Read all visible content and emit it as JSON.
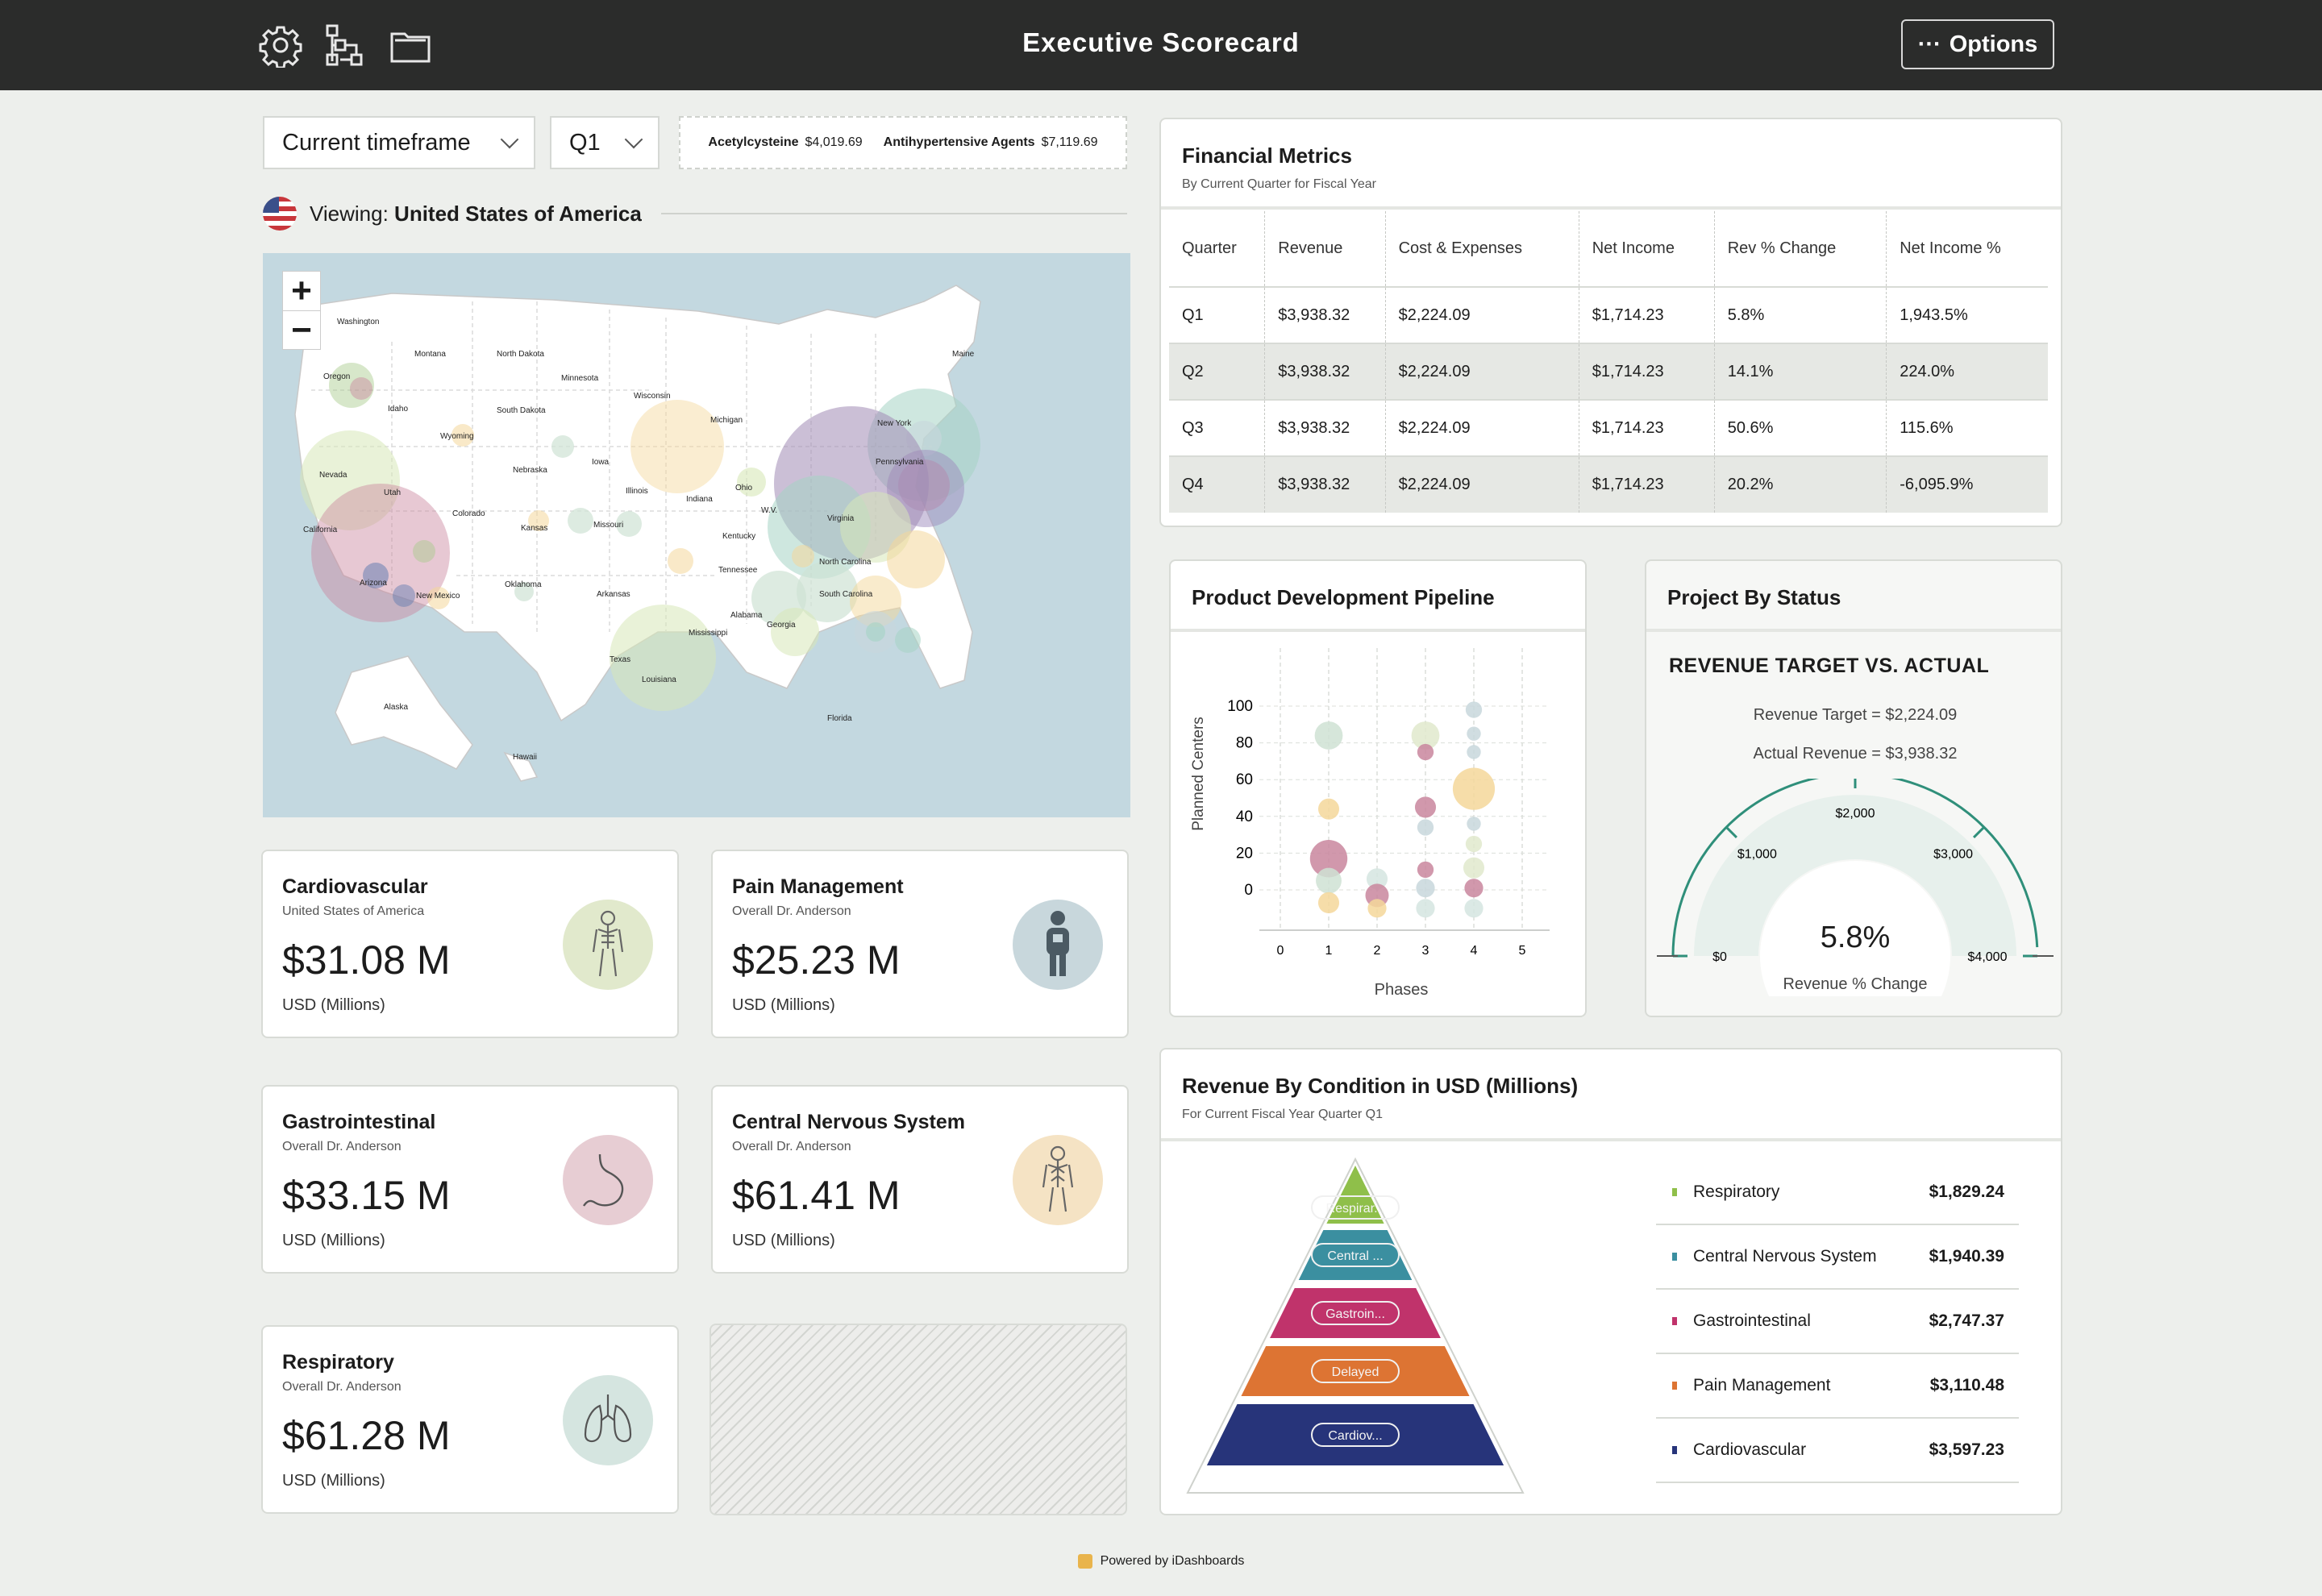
{
  "header": {
    "title": "Executive Scorecard",
    "options_label": "Options",
    "icons": [
      "gear-icon",
      "hierarchy-icon",
      "folder-icon"
    ]
  },
  "filters": {
    "timeframe": "Current timeframe",
    "quarter": "Q1",
    "ticker": [
      {
        "name": "Acetylcysteine",
        "value": "$4,019.69"
      },
      {
        "name": "Antihypertensive Agents",
        "value": "$7,119.69"
      }
    ]
  },
  "viewing": {
    "prefix": "Viewing:",
    "country": "United States of America"
  },
  "map": {
    "states": [
      "Washington",
      "Montana",
      "North Dakota",
      "Minnesota",
      "Wisconsin",
      "Michigan",
      "Maine",
      "Oregon",
      "Idaho",
      "Wyoming",
      "South Dakota",
      "Iowa",
      "Illinois",
      "New York",
      "Pennsylvania",
      "Nevada",
      "Utah",
      "Colorado",
      "Nebraska",
      "Kansas",
      "Missouri",
      "Indiana",
      "Ohio",
      "W.V.",
      "Virginia",
      "California",
      "Arizona",
      "New Mexico",
      "Oklahoma",
      "Arkansas",
      "Tennessee",
      "Kentucky",
      "North Carolina",
      "South Carolina",
      "Alabama",
      "Georgia",
      "Mississippi",
      "Texas",
      "Louisiana",
      "Florida",
      "Alaska",
      "Hawaii"
    ],
    "zoom_in": "+",
    "zoom_out": "−"
  },
  "kpis": [
    {
      "name": "Cardiovascular",
      "sub": "United States of America",
      "value": "$31.08 M",
      "unit": "USD (Millions)",
      "icon": "body-icon",
      "color": "#e1e9cc"
    },
    {
      "name": "Pain Management",
      "sub": "Overall Dr. Anderson",
      "value": "$25.23 M",
      "unit": "USD (Millions)",
      "icon": "patient-icon",
      "color": "#c8d7dc"
    },
    {
      "name": "Gastrointestinal",
      "sub": "Overall Dr. Anderson",
      "value": "$33.15 M",
      "unit": "USD (Millions)",
      "icon": "stomach-icon",
      "color": "#e7cdd3"
    },
    {
      "name": "Central Nervous System",
      "sub": "Overall Dr. Anderson",
      "value": "$61.41 M",
      "unit": "USD (Millions)",
      "icon": "nervous-system-icon",
      "color": "#f5e3c4"
    },
    {
      "name": "Respiratory",
      "sub": "Overall Dr. Anderson",
      "value": "$61.28 M",
      "unit": "USD (Millions)",
      "icon": "lungs-icon",
      "color": "#d5e5e0"
    }
  ],
  "financial": {
    "title": "Financial Metrics",
    "subtitle": "By Current Quarter for Fiscal Year",
    "columns": [
      "Quarter",
      "Revenue",
      "Cost & Expenses",
      "Net Income",
      "Rev % Change",
      "Net Income %"
    ],
    "rows": [
      [
        "Q1",
        "$3,938.32",
        "$2,224.09",
        "$1,714.23",
        "5.8%",
        "1,943.5%"
      ],
      [
        "Q2",
        "$3,938.32",
        "$2,224.09",
        "$1,714.23",
        "14.1%",
        "224.0%"
      ],
      [
        "Q3",
        "$3,938.32",
        "$2,224.09",
        "$1,714.23",
        "50.6%",
        "115.6%"
      ],
      [
        "Q4",
        "$3,938.32",
        "$2,224.09",
        "$1,714.23",
        "20.2%",
        "-6,095.9%"
      ]
    ]
  },
  "pipeline": {
    "title": "Product Development Pipeline",
    "chart_data": {
      "type": "scatter",
      "xlabel": "Phases",
      "ylabel": "Planned Centers",
      "xlim": [
        0,
        5
      ],
      "ylim": [
        0,
        100
      ],
      "x_ticks": [
        "0",
        "1",
        "2",
        "3",
        "4",
        "5"
      ],
      "y_ticks": [
        "0",
        "20",
        "40",
        "60",
        "80",
        "100"
      ],
      "points": [
        {
          "x": 1,
          "y": 84,
          "r": 12,
          "color": "#cfe2d4"
        },
        {
          "x": 1,
          "y": 44,
          "r": 9,
          "color": "#f4d79a"
        },
        {
          "x": 1,
          "y": 17,
          "r": 16,
          "color": "#c9869e"
        },
        {
          "x": 1,
          "y": 5,
          "r": 11,
          "color": "#cfe2d4"
        },
        {
          "x": 1,
          "y": -7,
          "r": 9,
          "color": "#f4d79a"
        },
        {
          "x": 2,
          "y": 6,
          "r": 9,
          "color": "#d5e5e0"
        },
        {
          "x": 2,
          "y": -3,
          "r": 10,
          "color": "#c9869e"
        },
        {
          "x": 2,
          "y": -10,
          "r": 8,
          "color": "#f4d79a"
        },
        {
          "x": 3,
          "y": 84,
          "r": 12,
          "color": "#e1e9cc"
        },
        {
          "x": 3,
          "y": 75,
          "r": 7,
          "color": "#c9869e"
        },
        {
          "x": 3,
          "y": 45,
          "r": 9,
          "color": "#c9869e"
        },
        {
          "x": 3,
          "y": 34,
          "r": 7,
          "color": "#c8d7dc"
        },
        {
          "x": 3,
          "y": 11,
          "r": 7,
          "color": "#c9869e"
        },
        {
          "x": 3,
          "y": 1,
          "r": 8,
          "color": "#c8d7dc"
        },
        {
          "x": 3,
          "y": -10,
          "r": 8,
          "color": "#d5e5e0"
        },
        {
          "x": 4,
          "y": 98,
          "r": 7,
          "color": "#c8d7dc"
        },
        {
          "x": 4,
          "y": 85,
          "r": 6,
          "color": "#c8d7dc"
        },
        {
          "x": 4,
          "y": 75,
          "r": 6,
          "color": "#c8d7dc"
        },
        {
          "x": 4,
          "y": 55,
          "r": 18,
          "color": "#f4d79a"
        },
        {
          "x": 4,
          "y": 36,
          "r": 6,
          "color": "#c8d7dc"
        },
        {
          "x": 4,
          "y": 25,
          "r": 7,
          "color": "#e1e9cc"
        },
        {
          "x": 4,
          "y": 12,
          "r": 9,
          "color": "#e1e9cc"
        },
        {
          "x": 4,
          "y": 1,
          "r": 8,
          "color": "#c9869e"
        },
        {
          "x": 4,
          "y": -10,
          "r": 8,
          "color": "#d5e5e0"
        }
      ]
    }
  },
  "status": {
    "title": "Project By Status",
    "heading": "REVENUE TARGET VS. ACTUAL",
    "target_label": "Revenue Target = $2,224.09",
    "actual_label": "Actual Revenue = $3,938.32",
    "gauge_value": "5.8%",
    "gauge_caption": "Revenue % Change",
    "gauge_ticks": [
      "$0",
      "$1,000",
      "$2,000",
      "$3,000",
      "$4,000"
    ],
    "gauge_min": 0,
    "gauge_max": 4000,
    "gauge_actual": 3938.32,
    "accent": "#2f8f7a"
  },
  "revenue": {
    "title": "Revenue By Condition in USD (Millions)",
    "subtitle": "For Current Fiscal Year Quarter Q1",
    "pyramid": [
      {
        "label": "Respirar...",
        "color": "#8fbf4a"
      },
      {
        "label": "Central ...",
        "color": "#3b8fa0"
      },
      {
        "label": "Gastroin...",
        "color": "#c0336b"
      },
      {
        "label": "Delayed",
        "color": "#dd7433"
      },
      {
        "label": "Cardiov...",
        "color": "#27347a"
      }
    ],
    "legend": [
      {
        "name": "Respiratory",
        "value": "$1,829.24",
        "color": "#8fbf4a"
      },
      {
        "name": "Central Nervous System",
        "value": "$1,940.39",
        "color": "#3b8fa0"
      },
      {
        "name": "Gastrointestinal",
        "value": "$2,747.37",
        "color": "#c0336b"
      },
      {
        "name": "Pain Management",
        "value": "$3,110.48",
        "color": "#dd7433"
      },
      {
        "name": "Cardiovascular",
        "value": "$3,597.23",
        "color": "#27347a"
      }
    ]
  },
  "footer": {
    "text": "Powered by iDashboards"
  }
}
